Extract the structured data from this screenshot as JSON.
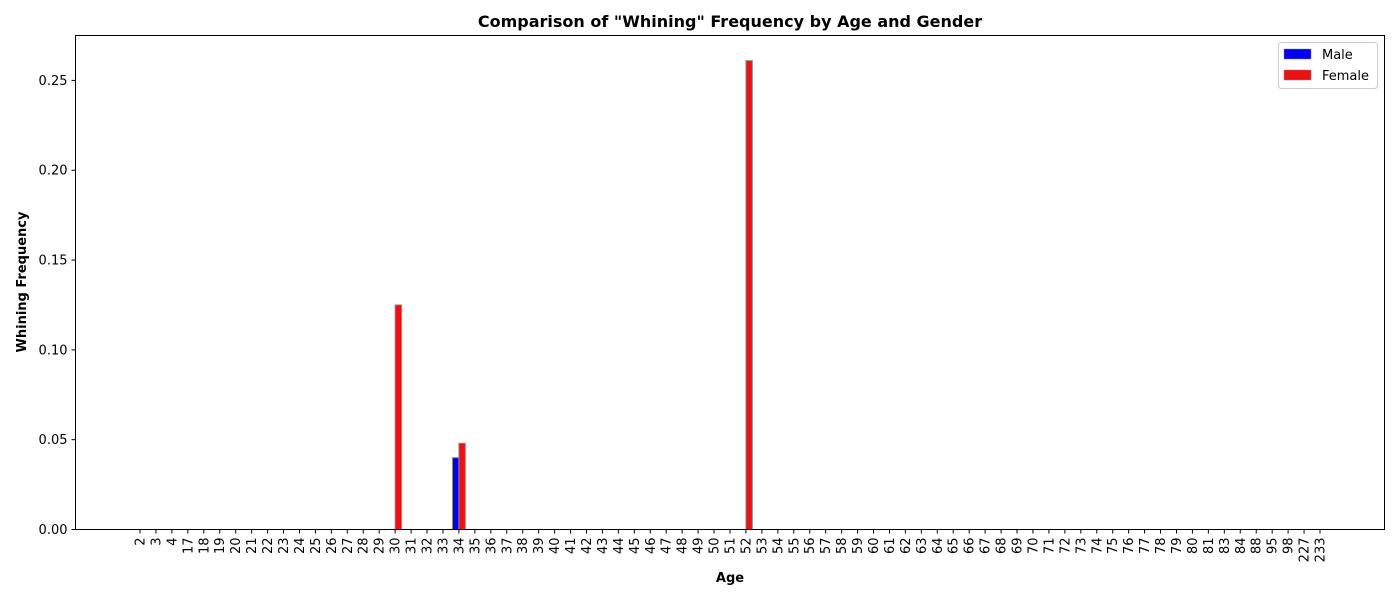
{
  "chart_data": {
    "type": "bar",
    "title": "Comparison of \"Whining\" Frequency by Age and Gender",
    "xlabel": "Age",
    "ylabel": "Whining Frequency",
    "ylim": [
      0,
      0.275
    ],
    "yticks": [
      "0.00",
      "0.05",
      "0.10",
      "0.15",
      "0.20",
      "0.25"
    ],
    "grid": false,
    "legend_position": "top-right",
    "categories": [
      "2",
      "3",
      "4",
      "17",
      "18",
      "19",
      "20",
      "21",
      "22",
      "23",
      "24",
      "25",
      "26",
      "27",
      "28",
      "29",
      "30",
      "31",
      "32",
      "33",
      "34",
      "35",
      "36",
      "37",
      "38",
      "39",
      "40",
      "41",
      "42",
      "43",
      "44",
      "45",
      "46",
      "47",
      "48",
      "49",
      "50",
      "51",
      "52",
      "53",
      "54",
      "55",
      "56",
      "57",
      "58",
      "59",
      "60",
      "61",
      "62",
      "63",
      "64",
      "65",
      "66",
      "67",
      "68",
      "69",
      "70",
      "71",
      "72",
      "73",
      "74",
      "75",
      "76",
      "77",
      "78",
      "79",
      "80",
      "81",
      "83",
      "84",
      "88",
      "95",
      "98",
      "227",
      "233"
    ],
    "series": [
      {
        "name": "Male",
        "color": "#0000ee",
        "values": [
          0,
          0,
          0,
          0,
          0,
          0,
          0,
          0,
          0,
          0,
          0,
          0,
          0,
          0,
          0,
          0,
          0,
          0,
          0,
          0,
          0.04,
          0,
          0,
          0,
          0,
          0,
          0,
          0,
          0,
          0,
          0,
          0,
          0,
          0,
          0,
          0,
          0,
          0,
          0,
          0,
          0,
          0,
          0,
          0,
          0,
          0,
          0,
          0,
          0,
          0,
          0,
          0,
          0,
          0,
          0,
          0,
          0,
          0,
          0,
          0,
          0,
          0,
          0,
          0,
          0,
          0,
          0,
          0,
          0,
          0,
          0,
          0,
          0,
          0,
          0
        ]
      },
      {
        "name": "Female",
        "color": "#ee1111",
        "values": [
          0,
          0,
          0,
          0,
          0,
          0,
          0,
          0,
          0,
          0,
          0,
          0,
          0,
          0,
          0,
          0,
          0.125,
          0,
          0,
          0,
          0.048,
          0,
          0,
          0,
          0,
          0,
          0,
          0,
          0,
          0,
          0,
          0,
          0,
          0,
          0,
          0,
          0,
          0,
          0.261,
          0,
          0,
          0,
          0,
          0,
          0,
          0,
          0,
          0,
          0,
          0,
          0,
          0,
          0,
          0,
          0,
          0,
          0,
          0,
          0,
          0,
          0,
          0,
          0,
          0,
          0,
          0,
          0,
          0,
          0,
          0,
          0,
          0,
          0,
          0,
          0
        ]
      }
    ]
  }
}
